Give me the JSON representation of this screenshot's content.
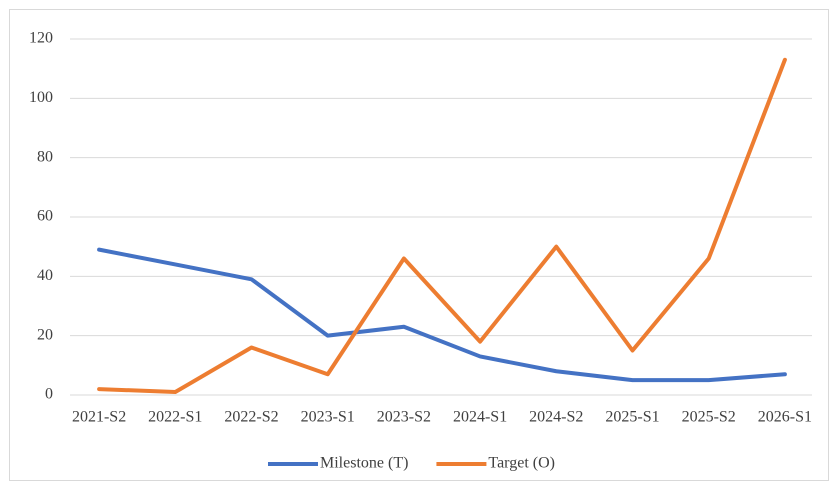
{
  "chart_data": {
    "type": "line",
    "categories": [
      "2021-S2",
      "2022-S1",
      "2022-S2",
      "2023-S1",
      "2023-S2",
      "2024-S1",
      "2024-S2",
      "2025-S1",
      "2025-S2",
      "2026-S1"
    ],
    "series": [
      {
        "name": "Milestone (T)",
        "color": "#4472c4",
        "values": [
          49,
          44,
          39,
          20,
          23,
          13,
          8,
          5,
          5,
          7
        ]
      },
      {
        "name": "Target (O)",
        "color": "#ed7d31",
        "values": [
          2,
          1,
          16,
          7,
          46,
          18,
          50,
          15,
          46,
          113
        ]
      }
    ],
    "ylim": [
      0,
      120
    ],
    "yticks": [
      0,
      20,
      40,
      60,
      80,
      100,
      120
    ],
    "grid": true,
    "legend": "bottom"
  }
}
